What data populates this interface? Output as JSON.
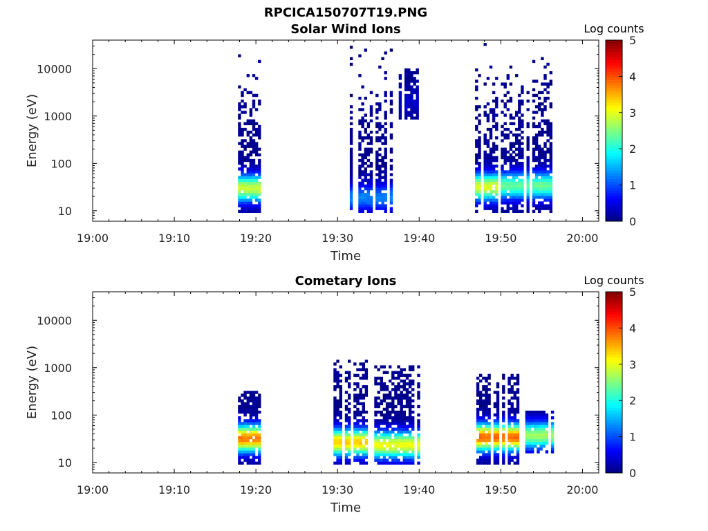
{
  "figure": {
    "title": "RPCICA150707T19.PNG"
  },
  "colorbar": {
    "label": "Log counts",
    "ticks": [
      "0",
      "1",
      "2",
      "3",
      "4",
      "5"
    ],
    "range": [
      0,
      5
    ],
    "colormap": "jet"
  },
  "chart_data": [
    {
      "type": "heatmap",
      "title": "Solar Wind Ions",
      "xlabel": "Time",
      "ylabel": "Energy (eV)",
      "xticks": [
        "19:00",
        "19:10",
        "19:20",
        "19:30",
        "19:40",
        "19:50",
        "20:00"
      ],
      "xlim": [
        0,
        62
      ],
      "yscale": "log",
      "ylim": [
        6,
        40000
      ],
      "yticks": [
        "10",
        "100",
        "1000",
        "10000"
      ],
      "ytick_values": [
        10,
        100,
        1000,
        10000
      ],
      "bursts": [
        {
          "start_min": 17.8,
          "end_min": 20.5,
          "emin_ev": 8,
          "emax_ev": 18000,
          "peak_log": 2.8,
          "peak_ev": 28
        },
        {
          "start_min": 31.5,
          "end_min": 36.5,
          "emin_ev": 8,
          "emax_ev": 30000,
          "peak_log": 1.2,
          "peak_ev": 18
        },
        {
          "start_min": 37.5,
          "end_min": 39.8,
          "emin_ev": 800,
          "emax_ev": 9000,
          "peak_log": 0.3,
          "peak_ev": 2000
        },
        {
          "start_min": 46.5,
          "end_min": 49.5,
          "emin_ev": 8,
          "emax_ev": 35000,
          "peak_log": 2.9,
          "peak_ev": 30
        },
        {
          "start_min": 50,
          "end_min": 56,
          "emin_ev": 8,
          "emax_ev": 16000,
          "peak_log": 2.3,
          "peak_ev": 32
        }
      ]
    },
    {
      "type": "heatmap",
      "title": "Cometary Ions",
      "xlabel": "Time",
      "ylabel": "Energy (eV)",
      "xticks": [
        "19:00",
        "19:10",
        "19:20",
        "19:30",
        "19:40",
        "19:50",
        "20:00"
      ],
      "xlim": [
        0,
        62
      ],
      "yscale": "log",
      "ylim": [
        6,
        40000
      ],
      "yticks": [
        "10",
        "100",
        "1000",
        "10000"
      ],
      "ytick_values": [
        10,
        100,
        1000,
        10000
      ],
      "bursts": [
        {
          "start_min": 17.8,
          "end_min": 20.5,
          "emin_ev": 8,
          "emax_ev": 300,
          "peak_log": 3.7,
          "peak_ev": 30
        },
        {
          "start_min": 29.5,
          "end_min": 33.5,
          "emin_ev": 8,
          "emax_ev": 1300,
          "peak_log": 3.3,
          "peak_ev": 25
        },
        {
          "start_min": 34.5,
          "end_min": 40,
          "emin_ev": 8,
          "emax_ev": 1000,
          "peak_log": 3.0,
          "peak_ev": 22
        },
        {
          "start_min": 47,
          "end_min": 52.5,
          "emin_ev": 8,
          "emax_ev": 700,
          "peak_log": 3.8,
          "peak_ev": 32
        },
        {
          "start_min": 53,
          "end_min": 56.5,
          "emin_ev": 15,
          "emax_ev": 120,
          "peak_log": 2.6,
          "peak_ev": 35
        }
      ]
    }
  ]
}
